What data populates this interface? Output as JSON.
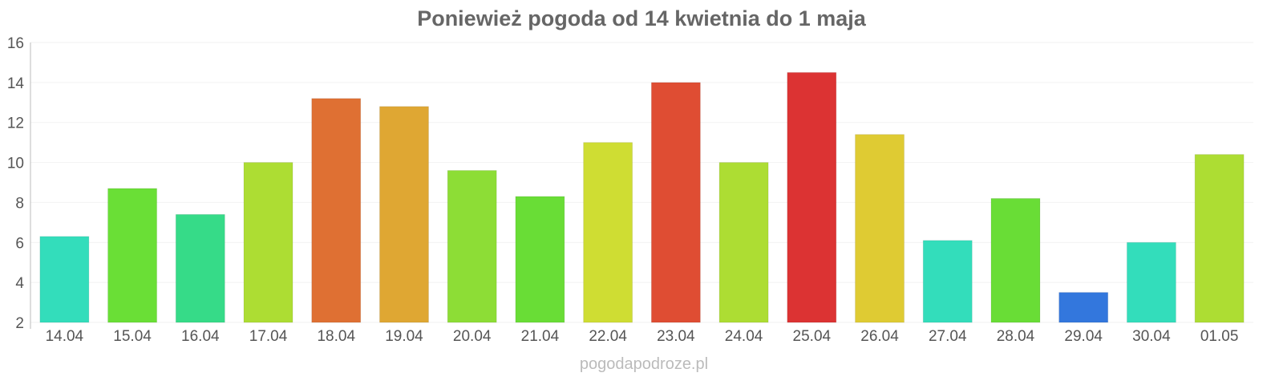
{
  "chart_data": {
    "type": "bar",
    "title": "Poniewież pogoda od 14 kwietnia do 1 maja",
    "xlabel": "",
    "ylabel": "",
    "ylim": [
      2,
      16
    ],
    "yticks": [
      2,
      4,
      6,
      8,
      10,
      12,
      14,
      16
    ],
    "grid": true,
    "categories": [
      "14.04",
      "15.04",
      "16.04",
      "17.04",
      "18.04",
      "19.04",
      "20.04",
      "21.04",
      "22.04",
      "23.04",
      "24.04",
      "25.04",
      "26.04",
      "27.04",
      "28.04",
      "29.04",
      "30.04",
      "01.05"
    ],
    "values": [
      6.3,
      8.7,
      7.4,
      10.0,
      13.2,
      12.8,
      9.6,
      8.3,
      11.0,
      14.0,
      10.0,
      14.5,
      11.4,
      6.1,
      8.2,
      3.5,
      6.0,
      10.4
    ],
    "colors": [
      "#33ddbb",
      "#6adf36",
      "#36db88",
      "#addd33",
      "#df7033",
      "#dfa733",
      "#8ddd36",
      "#69dd36",
      "#cfdd33",
      "#df4d33",
      "#addd33",
      "#dc3333",
      "#dfcb33",
      "#33ddbb",
      "#69dd36",
      "#3377dd",
      "#33ddbb",
      "#addd33"
    ]
  },
  "watermark": "pogodapodroze.pl"
}
